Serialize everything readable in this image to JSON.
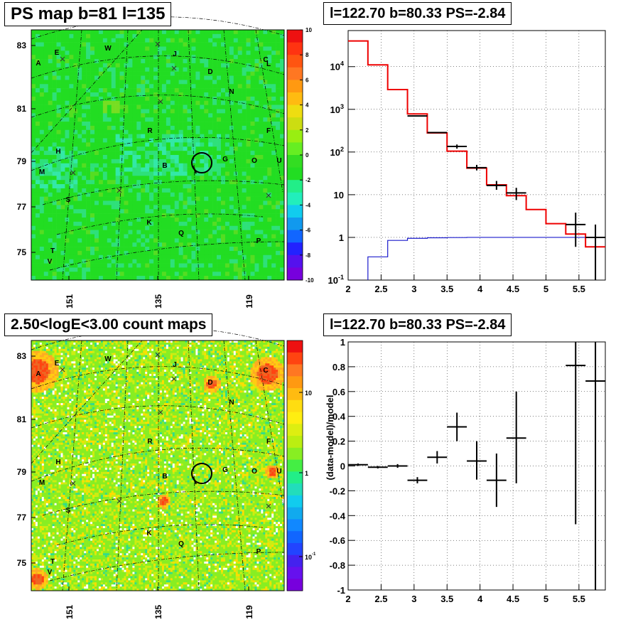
{
  "panels": {
    "top_left_title": "PS map b=81 l=135",
    "bottom_left_title": "2.50<logE<3.00 count maps",
    "top_right_title": "l=122.70 b=80.33 PS=-2.84",
    "bottom_right_title": "l=122.70 b=80.33 PS=-2.84"
  },
  "colors": {
    "map_bg": "#22dd22",
    "data": "#000000",
    "model": "#ee0000",
    "background_component": "#1a1acc"
  },
  "chart_data": [
    {
      "type": "heatmap",
      "title": "PS map b=81 l=135",
      "yticks": [
        "83",
        "81",
        "79",
        "77",
        "75"
      ],
      "xticks": [
        "151",
        "135",
        "119"
      ],
      "colorbar_ticks": [
        "10",
        "8",
        "6",
        "4",
        "2",
        "0",
        "-2",
        "-4",
        "-6",
        "-8",
        "-10"
      ],
      "colorbar_range": [
        -10,
        10
      ],
      "source_labels": [
        "A",
        "E",
        "W",
        "J",
        "C",
        "L",
        "D",
        "N",
        "R",
        "F",
        "H",
        "B",
        "G",
        "O",
        "U",
        "M",
        "S",
        "K",
        "Q",
        "P",
        "T",
        "V"
      ]
    },
    {
      "type": "heatmap",
      "title": "2.50<logE<3.00 count maps",
      "yticks": [
        "83",
        "81",
        "79",
        "77",
        "75"
      ],
      "xticks": [
        "151",
        "135",
        "119"
      ],
      "colorbar_ticks": [
        "10",
        "1",
        "10^-1"
      ],
      "colorbar_scale": "log",
      "source_labels": [
        "A",
        "E",
        "W",
        "J",
        "C",
        "D",
        "N",
        "R",
        "F",
        "H",
        "B",
        "G",
        "O",
        "U",
        "M",
        "S",
        "K",
        "Q",
        "P",
        "T",
        "V"
      ]
    },
    {
      "type": "line",
      "title": "l=122.70 b=80.33 PS=-2.84",
      "xlim": [
        2,
        5.9
      ],
      "ylim": [
        0.1,
        70000
      ],
      "yscale": "log",
      "xticks": [
        "2",
        "2.5",
        "3",
        "3.5",
        "4",
        "4.5",
        "5",
        "5.5"
      ],
      "yticks": [
        "10^4",
        "10^3",
        "10^2",
        "10",
        "1",
        "10^-1"
      ],
      "grid": true,
      "series": [
        {
          "role": "model",
          "edges": [
            2.0,
            2.3,
            2.6,
            2.9,
            3.2,
            3.5,
            3.8,
            4.1,
            4.4,
            4.7,
            5.0,
            5.3,
            5.6,
            5.9
          ],
          "values": [
            40000,
            11000,
            2900,
            780,
            280,
            105,
            42,
            17,
            9.5,
            4.5,
            2.1,
            1.2,
            0.6
          ]
        },
        {
          "role": "background",
          "edges": [
            2.3,
            2.6,
            2.9,
            3.2,
            3.5,
            3.8,
            4.1,
            4.4,
            4.7,
            5.0,
            5.3,
            5.6,
            5.9
          ],
          "values": [
            0.35,
            0.85,
            0.95,
            0.98,
            0.99,
            1.0,
            1.0,
            1.0,
            1.0,
            1.0,
            1.0,
            1.0
          ]
        },
        {
          "role": "data",
          "points": [
            {
              "x": 3.05,
              "y": 700,
              "xerr": 0.15,
              "ylo": 700,
              "yhi": 700
            },
            {
              "x": 3.35,
              "y": 285,
              "xerr": 0.15,
              "ylo": 285,
              "yhi": 285
            },
            {
              "x": 3.65,
              "y": 135,
              "xerr": 0.15,
              "ylo": 120,
              "yhi": 150
            },
            {
              "x": 3.95,
              "y": 43,
              "xerr": 0.15,
              "ylo": 37,
              "yhi": 50
            },
            {
              "x": 4.25,
              "y": 16.5,
              "xerr": 0.15,
              "ylo": 13,
              "yhi": 21
            },
            {
              "x": 4.55,
              "y": 11,
              "xerr": 0.15,
              "ylo": 7.5,
              "yhi": 14.5
            },
            {
              "x": 5.45,
              "y": 2.0,
              "xerr": 0.15,
              "ylo": 0.6,
              "yhi": 3.8
            },
            {
              "x": 5.75,
              "y": 1.0,
              "xerr": 0.15,
              "ylo": 0.1,
              "yhi": 2.0
            }
          ]
        }
      ]
    },
    {
      "type": "scatter",
      "title": "l=122.70 b=80.33 PS=-2.84",
      "ylabel": "(data-model)/model",
      "xlim": [
        2,
        5.9
      ],
      "ylim": [
        -1,
        1
      ],
      "xticks": [
        "2",
        "2.5",
        "3",
        "3.5",
        "4",
        "4.5",
        "5",
        "5.5"
      ],
      "yticks": [
        "1",
        "0.8",
        "0.6",
        "0.4",
        "0.2",
        "0",
        "-0.2",
        "-0.4",
        "-0.6",
        "-0.8",
        "-1"
      ],
      "grid": true,
      "points": [
        {
          "x": 2.15,
          "y": 0.01,
          "xerr": 0.15,
          "ylo": 0.0,
          "yhi": 0.02
        },
        {
          "x": 2.45,
          "y": -0.01,
          "xerr": 0.15,
          "ylo": -0.02,
          "yhi": 0.0
        },
        {
          "x": 2.75,
          "y": 0.0,
          "xerr": 0.15,
          "ylo": -0.015,
          "yhi": 0.015
        },
        {
          "x": 3.05,
          "y": -0.115,
          "xerr": 0.15,
          "ylo": -0.14,
          "yhi": -0.09
        },
        {
          "x": 3.35,
          "y": 0.07,
          "xerr": 0.15,
          "ylo": 0.02,
          "yhi": 0.12
        },
        {
          "x": 3.65,
          "y": 0.315,
          "xerr": 0.15,
          "ylo": 0.2,
          "yhi": 0.43
        },
        {
          "x": 3.95,
          "y": 0.04,
          "xerr": 0.15,
          "ylo": -0.11,
          "yhi": 0.2
        },
        {
          "x": 4.25,
          "y": -0.115,
          "xerr": 0.15,
          "ylo": -0.33,
          "yhi": 0.1
        },
        {
          "x": 4.55,
          "y": 0.225,
          "xerr": 0.15,
          "ylo": -0.14,
          "yhi": 0.6
        },
        {
          "x": 5.45,
          "y": 0.81,
          "xerr": 0.15,
          "ylo": -0.47,
          "yhi": 1.0
        },
        {
          "x": 5.75,
          "y": 0.685,
          "xerr": 0.15,
          "ylo": -1.0,
          "yhi": 1.0
        }
      ]
    }
  ]
}
